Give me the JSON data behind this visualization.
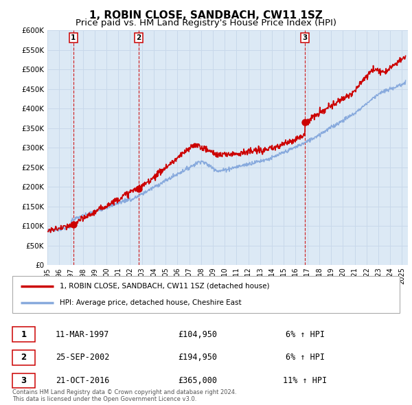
{
  "title": "1, ROBIN CLOSE, SANDBACH, CW11 1SZ",
  "subtitle": "Price paid vs. HM Land Registry's House Price Index (HPI)",
  "title_fontsize": 11,
  "subtitle_fontsize": 9.5,
  "background_color": "#ffffff",
  "plot_bg_color": "#dce9f5",
  "grid_color": "#c8d8ea",
  "red_line_color": "#cc0000",
  "blue_line_color": "#88aadd",
  "ylim": [
    0,
    600000
  ],
  "yticks": [
    0,
    50000,
    100000,
    150000,
    200000,
    250000,
    300000,
    350000,
    400000,
    450000,
    500000,
    550000,
    600000
  ],
  "xmin_year": 1995.0,
  "xmax_year": 2025.5,
  "sale_points": [
    {
      "year": 1997.19,
      "price": 104950,
      "label": "1"
    },
    {
      "year": 2002.73,
      "price": 194950,
      "label": "2"
    },
    {
      "year": 2016.8,
      "price": 365000,
      "label": "3"
    }
  ],
  "legend_entries": [
    "1, ROBIN CLOSE, SANDBACH, CW11 1SZ (detached house)",
    "HPI: Average price, detached house, Cheshire East"
  ],
  "table_rows": [
    {
      "num": "1",
      "date": "11-MAR-1997",
      "price": "£104,950",
      "change": "6% ↑ HPI"
    },
    {
      "num": "2",
      "date": "25-SEP-2002",
      "price": "£194,950",
      "change": "6% ↑ HPI"
    },
    {
      "num": "3",
      "date": "21-OCT-2016",
      "price": "£365,000",
      "change": "11% ↑ HPI"
    }
  ],
  "footer_text": "Contains HM Land Registry data © Crown copyright and database right 2024.\nThis data is licensed under the Open Government Licence v3.0.",
  "xtick_years": [
    1995,
    1996,
    1997,
    1998,
    1999,
    2000,
    2001,
    2002,
    2003,
    2004,
    2005,
    2006,
    2007,
    2008,
    2009,
    2010,
    2011,
    2012,
    2013,
    2014,
    2015,
    2016,
    2017,
    2018,
    2019,
    2020,
    2021,
    2022,
    2023,
    2024,
    2025
  ]
}
